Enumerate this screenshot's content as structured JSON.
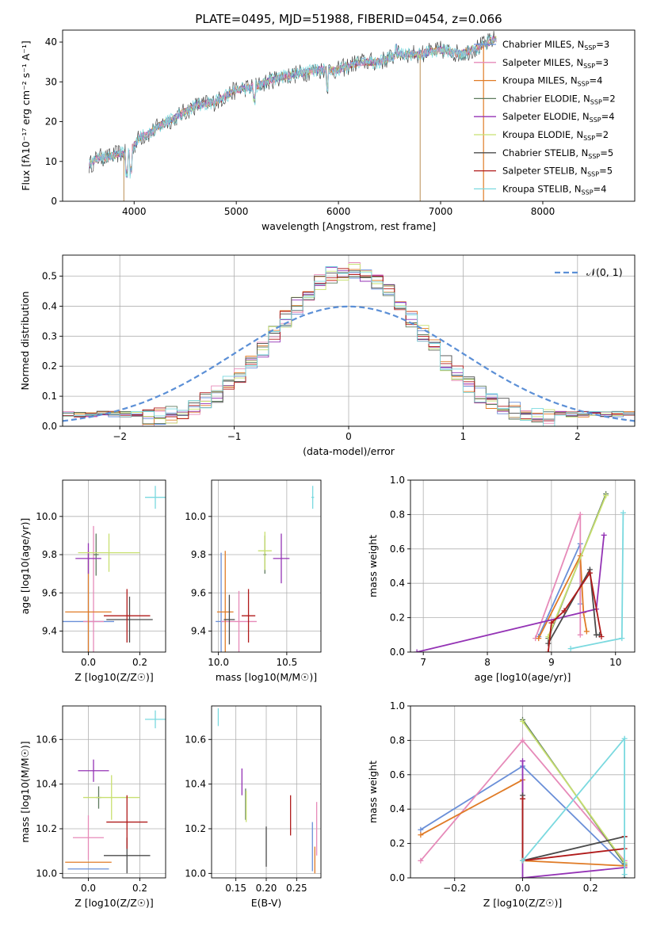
{
  "figure": {
    "title": "PLATE=0495, MJD=51988, FIBERID=0454, z=0.066"
  },
  "colors": {
    "Chabrier MILES": "#6a8fd8",
    "Salpeter MILES": "#e68ab9",
    "Kroupa MILES": "#e07b26",
    "Chabrier ELODIE": "#5e7a5e",
    "Salpeter ELODIE": "#9433b5",
    "Kroupa ELODIE": "#c8e070",
    "Chabrier STELIB": "#4b4b4b",
    "Salpeter STELIB": "#b01a1a",
    "Kroupa STELIB": "#7ad9df"
  },
  "chart_data": [
    {
      "id": "spectrum",
      "type": "line",
      "title": "PLATE=0495, MJD=51988, FIBERID=0454, z=0.066",
      "xlabel": "wavelength [Angstrom, rest frame]",
      "ylabel": "Flux [fλ10⁻¹⁷ erg cm⁻² s⁻¹ A⁻¹]",
      "xlim": [
        3300,
        8900
      ],
      "ylim": [
        0,
        43
      ],
      "xticks": [
        4000,
        5000,
        6000,
        7000,
        8000
      ],
      "yticks": [
        0,
        10,
        20,
        30,
        40
      ],
      "grid": false,
      "legend_position": "right",
      "legend": [
        {
          "series": "Chabrier MILES",
          "label": "Chabrier MILES, N",
          "sub": "SSP",
          "suffix": "=3"
        },
        {
          "series": "Salpeter MILES",
          "label": "Salpeter MILES, N",
          "sub": "SSP",
          "suffix": "=3"
        },
        {
          "series": "Kroupa MILES",
          "label": "Kroupa MILES, N",
          "sub": "SSP",
          "suffix": "=4"
        },
        {
          "series": "Chabrier ELODIE",
          "label": "Chabrier ELODIE, N",
          "sub": "SSP",
          "suffix": "=2"
        },
        {
          "series": "Salpeter ELODIE",
          "label": "Salpeter ELODIE, N",
          "sub": "SSP",
          "suffix": "=4"
        },
        {
          "series": "Kroupa ELODIE",
          "label": "Kroupa ELODIE, N",
          "sub": "SSP",
          "suffix": "=2"
        },
        {
          "series": "Chabrier STELIB",
          "label": "Chabrier STELIB, N",
          "sub": "SSP",
          "suffix": "=5"
        },
        {
          "series": "Salpeter STELIB",
          "label": "Salpeter STELIB, N",
          "sub": "SSP",
          "suffix": "=5"
        },
        {
          "series": "Kroupa STELIB",
          "label": "Kroupa STELIB, N",
          "sub": "SSP",
          "suffix": "=4"
        }
      ],
      "continuum": {
        "x": [
          3560,
          3650,
          3750,
          3850,
          3950,
          4050,
          4150,
          4250,
          4400,
          4600,
          4800,
          5000,
          5200,
          5400,
          5600,
          5800,
          6000,
          6200,
          6400,
          6600,
          6800,
          7000,
          7200,
          7400,
          7550
        ],
        "y": [
          9,
          11,
          11,
          12,
          12,
          16,
          17,
          19,
          21,
          24,
          25,
          28,
          29,
          31,
          32,
          33,
          33,
          35,
          35,
          37,
          37,
          38,
          37,
          39,
          41
        ]
      },
      "dips": [
        {
          "x": 3900,
          "y": 0
        },
        {
          "x": 6800,
          "y": 0
        },
        {
          "x": 7420,
          "y": 0
        }
      ]
    },
    {
      "id": "residuals",
      "type": "area",
      "xlabel": "(data-model)/error",
      "ylabel": "Normed distribution",
      "xlim": [
        -2.5,
        2.5
      ],
      "ylim": [
        0,
        0.57
      ],
      "xticks": [
        -2,
        -1,
        0,
        1,
        2
      ],
      "yticks": [
        0.0,
        0.1,
        0.2,
        0.3,
        0.4,
        0.5
      ],
      "grid": true,
      "legend_position": "top-right",
      "legend": [
        "𝒩(0, 1)"
      ],
      "normal_curve": {
        "mean": 0,
        "sigma": 1
      }
    },
    {
      "id": "z-vs-age",
      "type": "scatter",
      "xlabel": "Z [log10(Z/Z☉)]",
      "ylabel": "age [log10(age/yr)]",
      "xlim": [
        -0.1,
        0.3
      ],
      "ylim": [
        9.29,
        10.19
      ],
      "xticks": [
        0.0,
        0.2
      ],
      "yticks": [
        9.4,
        9.6,
        9.8,
        10.0
      ],
      "grid": true,
      "points": [
        {
          "series": "Chabrier MILES",
          "x": 0.0,
          "y": 9.45,
          "xerr": 0.1,
          "yerr": 0.36
        },
        {
          "series": "Salpeter MILES",
          "x": 0.02,
          "y": 9.45,
          "xerr": 0.04,
          "yerr": 0.5
        },
        {
          "series": "Kroupa MILES",
          "x": 0.0,
          "y": 9.5,
          "xerr": 0.09,
          "yerr": 0.32
        },
        {
          "series": "Chabrier ELODIE",
          "x": 0.03,
          "y": 9.8,
          "xerr": 0.01,
          "yerr": 0.11
        },
        {
          "series": "Salpeter ELODIE",
          "x": 0.0,
          "y": 9.78,
          "xerr": 0.05,
          "yerr": 0.08
        },
        {
          "series": "Kroupa ELODIE",
          "x": 0.08,
          "y": 9.81,
          "xerr": 0.12,
          "yerr": 0.1
        },
        {
          "series": "Chabrier STELIB",
          "x": 0.16,
          "y": 9.46,
          "xerr": 0.09,
          "yerr": 0.12
        },
        {
          "series": "Salpeter STELIB",
          "x": 0.15,
          "y": 9.48,
          "xerr": 0.09,
          "yerr": 0.14
        },
        {
          "series": "Kroupa STELIB",
          "x": 0.26,
          "y": 10.1,
          "xerr": 0.04,
          "yerr": 0.06
        }
      ]
    },
    {
      "id": "mass-vs-age",
      "type": "scatter",
      "xlabel": "mass [log10(M/M☉)]",
      "ylabel": "",
      "xlim": [
        9.95,
        10.75
      ],
      "ylim": [
        9.29,
        10.19
      ],
      "xticks": [
        10.0,
        10.5
      ],
      "yticks": [
        9.4,
        9.6,
        9.8,
        10.0
      ],
      "grid": true,
      "points": [
        {
          "series": "Chabrier MILES",
          "x": 10.02,
          "y": 9.45,
          "xerr": 0.04,
          "yerr": 0.36
        },
        {
          "series": "Salpeter MILES",
          "x": 10.15,
          "y": 9.45,
          "xerr": 0.13,
          "yerr": 0.16
        },
        {
          "series": "Kroupa MILES",
          "x": 10.05,
          "y": 9.5,
          "xerr": 0.06,
          "yerr": 0.32
        },
        {
          "series": "Chabrier ELODIE",
          "x": 10.34,
          "y": 9.8,
          "xerr": 0.01,
          "yerr": 0.1
        },
        {
          "series": "Salpeter ELODIE",
          "x": 10.46,
          "y": 9.78,
          "xerr": 0.06,
          "yerr": 0.13
        },
        {
          "series": "Kroupa ELODIE",
          "x": 10.34,
          "y": 9.82,
          "xerr": 0.05,
          "yerr": 0.1
        },
        {
          "series": "Chabrier STELIB",
          "x": 10.08,
          "y": 9.46,
          "xerr": 0.04,
          "yerr": 0.13
        },
        {
          "series": "Salpeter STELIB",
          "x": 10.22,
          "y": 9.48,
          "xerr": 0.05,
          "yerr": 0.14
        },
        {
          "series": "Kroupa STELIB",
          "x": 10.69,
          "y": 10.1,
          "xerr": 0.01,
          "yerr": 0.06
        }
      ]
    },
    {
      "id": "age-vs-weight",
      "type": "line",
      "xlabel": "age [log10(age/yr)]",
      "ylabel": "mass weight",
      "xlim": [
        6.8,
        10.3
      ],
      "ylim": [
        0,
        1
      ],
      "xticks": [
        7,
        8,
        9,
        10
      ],
      "yticks": [
        0.0,
        0.2,
        0.4,
        0.6,
        0.8,
        1.0
      ],
      "grid": true,
      "series": [
        {
          "name": "Chabrier MILES",
          "x": [
            8.8,
            9.45,
            9.45
          ],
          "y": [
            0.09,
            0.63,
            0.28
          ]
        },
        {
          "name": "Salpeter MILES",
          "x": [
            8.75,
            9.45,
            9.45
          ],
          "y": [
            0.08,
            0.8,
            0.1
          ]
        },
        {
          "name": "Kroupa MILES",
          "x": [
            8.8,
            9.45,
            9.5,
            9.55
          ],
          "y": [
            0.08,
            0.56,
            0.23,
            0.12
          ]
        },
        {
          "name": "Chabrier ELODIE",
          "x": [
            8.95,
            9.85
          ],
          "y": [
            0.08,
            0.92
          ]
        },
        {
          "name": "Salpeter ELODIE",
          "x": [
            6.9,
            9.7,
            9.82
          ],
          "y": [
            0.0,
            0.25,
            0.68
          ]
        },
        {
          "name": "Kroupa ELODIE",
          "x": [
            8.95,
            9.85
          ],
          "y": [
            0.09,
            0.91
          ]
        },
        {
          "name": "Chabrier STELIB",
          "x": [
            8.95,
            9.6,
            9.7,
            9.75
          ],
          "y": [
            0.05,
            0.48,
            0.1,
            0.1
          ]
        },
        {
          "name": "Salpeter STELIB",
          "x": [
            8.95,
            9.0,
            9.2,
            9.6,
            9.78
          ],
          "y": [
            0.0,
            0.17,
            0.24,
            0.46,
            0.09
          ]
        },
        {
          "name": "Kroupa STELIB",
          "x": [
            9.3,
            10.1,
            10.12
          ],
          "y": [
            0.02,
            0.08,
            0.81
          ]
        }
      ]
    },
    {
      "id": "z-vs-mass",
      "type": "scatter",
      "xlabel": "Z [log10(Z/Z☉)]",
      "ylabel": "mass [log10(M/M☉)]",
      "xlim": [
        -0.1,
        0.3
      ],
      "ylim": [
        9.98,
        10.75
      ],
      "xticks": [
        0.0,
        0.2
      ],
      "yticks": [
        10.0,
        10.2,
        10.4,
        10.6
      ],
      "grid": true,
      "points": [
        {
          "series": "Chabrier MILES",
          "x": 0.0,
          "y": 10.02,
          "xerr": 0.08,
          "yerr": 0.0
        },
        {
          "series": "Salpeter MILES",
          "x": 0.0,
          "y": 10.16,
          "xerr": 0.06,
          "yerr": 0.1
        },
        {
          "series": "Kroupa MILES",
          "x": 0.0,
          "y": 10.05,
          "xerr": 0.09,
          "yerr": 0.0
        },
        {
          "series": "Chabrier ELODIE",
          "x": 0.04,
          "y": 10.34,
          "xerr": 0.01,
          "yerr": 0.05
        },
        {
          "series": "Salpeter ELODIE",
          "x": 0.02,
          "y": 10.46,
          "xerr": 0.06,
          "yerr": 0.05
        },
        {
          "series": "Kroupa ELODIE",
          "x": 0.09,
          "y": 10.34,
          "xerr": 0.11,
          "yerr": 0.1
        },
        {
          "series": "Chabrier STELIB",
          "x": 0.15,
          "y": 10.08,
          "xerr": 0.09,
          "yerr": 0.08
        },
        {
          "series": "Salpeter STELIB",
          "x": 0.15,
          "y": 10.23,
          "xerr": 0.08,
          "yerr": 0.12
        },
        {
          "series": "Kroupa STELIB",
          "x": 0.26,
          "y": 10.69,
          "xerr": 0.04,
          "yerr": 0.04
        }
      ]
    },
    {
      "id": "ebv",
      "type": "scatter",
      "xlabel": "E(B-V)",
      "ylabel": "",
      "xlim": [
        0.11,
        0.29
      ],
      "ylim": [
        9.98,
        10.75
      ],
      "xticks": [
        0.15,
        0.2,
        0.25
      ],
      "yticks": [
        10.0,
        10.2,
        10.4,
        10.6
      ],
      "grid": true,
      "points": [
        {
          "series": "Chabrier MILES",
          "x": 0.276,
          "y": 10.12,
          "xerr": 0,
          "yerr": 0.11
        },
        {
          "series": "Salpeter MILES",
          "x": 0.283,
          "y": 10.2,
          "xerr": 0,
          "yerr": 0.12
        },
        {
          "series": "Kroupa MILES",
          "x": 0.28,
          "y": 10.06,
          "xerr": 0,
          "yerr": 0.06
        },
        {
          "series": "Chabrier ELODIE",
          "x": 0.166,
          "y": 10.31,
          "xerr": 0,
          "yerr": 0.07
        },
        {
          "series": "Salpeter ELODIE",
          "x": 0.16,
          "y": 10.41,
          "xerr": 0,
          "yerr": 0.06
        },
        {
          "series": "Kroupa ELODIE",
          "x": 0.167,
          "y": 10.3,
          "xerr": 0,
          "yerr": 0.07
        },
        {
          "series": "Chabrier STELIB",
          "x": 0.2,
          "y": 10.12,
          "xerr": 0,
          "yerr": 0.09
        },
        {
          "series": "Salpeter STELIB",
          "x": 0.24,
          "y": 10.26,
          "xerr": 0,
          "yerr": 0.09
        },
        {
          "series": "Kroupa STELIB",
          "x": 0.121,
          "y": 10.7,
          "xerr": 0,
          "yerr": 0.04
        }
      ]
    },
    {
      "id": "z-vs-weight",
      "type": "line",
      "xlabel": "Z [log10(Z/Z☉)]",
      "ylabel": "mass weight",
      "xlim": [
        -0.33,
        0.33
      ],
      "ylim": [
        0,
        1
      ],
      "xticks": [
        -0.2,
        0.0,
        0.2
      ],
      "yticks": [
        0.0,
        0.2,
        0.4,
        0.6,
        0.8,
        1.0
      ],
      "grid": true,
      "series": [
        {
          "name": "Chabrier MILES",
          "x": [
            -0.3,
            0.0,
            0.3
          ],
          "y": [
            0.28,
            0.65,
            0.07
          ]
        },
        {
          "name": "Salpeter MILES",
          "x": [
            -0.3,
            0.0,
            0.3
          ],
          "y": [
            0.1,
            0.8,
            0.1
          ]
        },
        {
          "name": "Kroupa MILES",
          "x": [
            -0.3,
            0.0,
            0.0,
            0.3
          ],
          "y": [
            0.25,
            0.57,
            0.1,
            0.07
          ]
        },
        {
          "name": "Chabrier ELODIE",
          "x": [
            0.0,
            0.3
          ],
          "y": [
            0.92,
            0.08
          ]
        },
        {
          "name": "Salpeter ELODIE",
          "x": [
            0.0,
            0.0,
            0.3
          ],
          "y": [
            0.68,
            0.0,
            0.06
          ]
        },
        {
          "name": "Kroupa ELODIE",
          "x": [
            0.0,
            0.3
          ],
          "y": [
            0.91,
            0.09
          ]
        },
        {
          "name": "Chabrier STELIB",
          "x": [
            0.0,
            0.0,
            0.3,
            0.3
          ],
          "y": [
            0.48,
            0.1,
            0.24,
            0.0
          ]
        },
        {
          "name": "Salpeter STELIB",
          "x": [
            0.0,
            0.0,
            0.3,
            0.3
          ],
          "y": [
            0.46,
            0.1,
            0.17,
            0.24
          ]
        },
        {
          "name": "Kroupa STELIB",
          "x": [
            0.0,
            0.3,
            0.3
          ],
          "y": [
            0.1,
            0.81,
            0.02
          ]
        }
      ]
    }
  ]
}
